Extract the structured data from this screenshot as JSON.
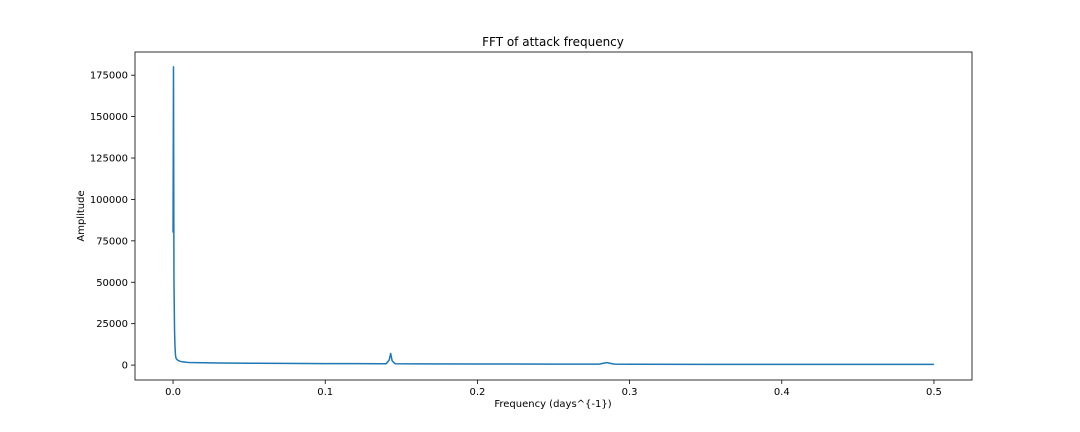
{
  "chart_data": {
    "type": "line",
    "title": "FFT of attack frequency",
    "xlabel": "Frequency (days^{-1})",
    "ylabel": "Amplitude",
    "xlim": [
      -0.025,
      0.525
    ],
    "ylim": [
      -9000,
      189000
    ],
    "xticks": [
      0.0,
      0.1,
      0.2,
      0.3,
      0.4,
      0.5
    ],
    "xtick_labels": [
      "0.0",
      "0.1",
      "0.2",
      "0.3",
      "0.4",
      "0.5"
    ],
    "yticks": [
      0,
      25000,
      50000,
      75000,
      100000,
      125000,
      150000,
      175000
    ],
    "ytick_labels": [
      "0",
      "25000",
      "50000",
      "75000",
      "100000",
      "125000",
      "150000",
      "175000"
    ],
    "grid": false,
    "legend": false,
    "color": "#1f77b4",
    "series": [
      {
        "x": [
          0.0,
          0.0003,
          0.0006,
          0.001,
          0.0013,
          0.0016,
          0.002,
          0.003,
          0.004,
          0.005,
          0.006,
          0.008,
          0.01,
          0.015,
          0.02,
          0.03,
          0.04,
          0.05,
          0.07,
          0.1,
          0.12,
          0.14,
          0.142,
          0.143,
          0.144,
          0.146,
          0.16,
          0.2,
          0.25,
          0.28,
          0.285,
          0.29,
          0.3,
          0.35,
          0.4,
          0.45,
          0.5
        ],
        "y": [
          80000,
          180000,
          50000,
          20000,
          11000,
          6000,
          4000,
          3000,
          2500,
          2200,
          2000,
          1800,
          1600,
          1500,
          1400,
          1300,
          1200,
          1100,
          1000,
          900,
          850,
          800,
          3000,
          7000,
          2500,
          800,
          700,
          650,
          600,
          600,
          1500,
          600,
          500,
          450,
          400,
          400,
          400
        ]
      }
    ]
  }
}
